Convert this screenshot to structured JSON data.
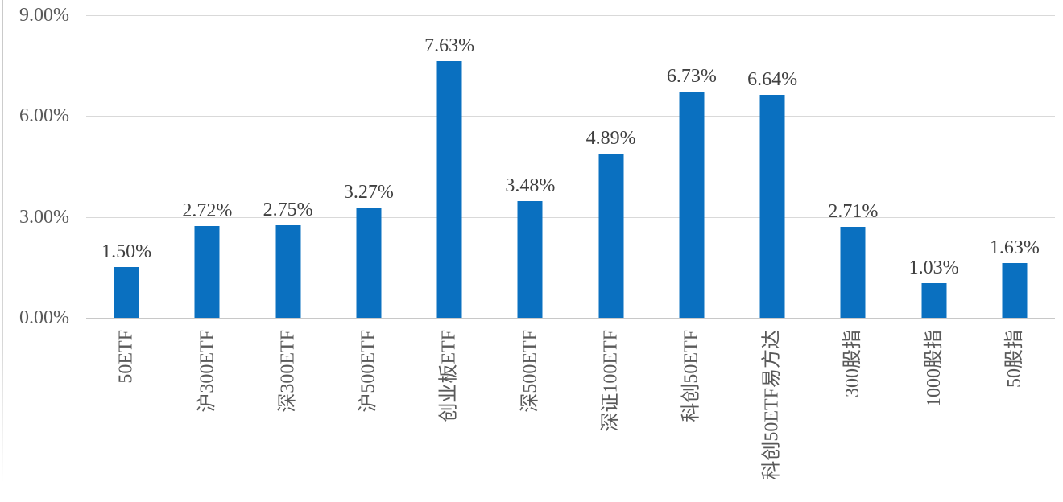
{
  "chart_data": {
    "type": "bar",
    "title": "",
    "xlabel": "",
    "ylabel": "",
    "categories": [
      "50ETF",
      "沪300ETF",
      "深300ETF",
      "沪500ETF",
      "创业板ETF",
      "深500ETF",
      "深证100ETF",
      "科创50ETF",
      "科创50ETF易方达",
      "300股指",
      "1000股指",
      "50股指"
    ],
    "values": [
      1.5,
      2.72,
      2.75,
      3.27,
      7.63,
      3.48,
      4.89,
      6.73,
      6.64,
      2.71,
      1.03,
      1.63
    ],
    "value_labels": [
      "1.50%",
      "2.72%",
      "2.75%",
      "3.27%",
      "7.63%",
      "3.48%",
      "4.89%",
      "6.73%",
      "6.64%",
      "2.71%",
      "1.03%",
      "1.63%"
    ],
    "yticks": [
      "9.00%",
      "6.00%",
      "3.00%",
      "0.00%"
    ],
    "ylim": [
      0,
      9
    ],
    "grid": true,
    "legend_position": "none",
    "category_label_rotation_deg": -90,
    "colors": {
      "bar": "#0a70c0",
      "gridline": "#d9d9d9",
      "axis_line": "#c8c8c8",
      "tick_label": "#595959",
      "value_label": "#404040",
      "category_label": "#595959",
      "background": "#ffffff"
    }
  }
}
